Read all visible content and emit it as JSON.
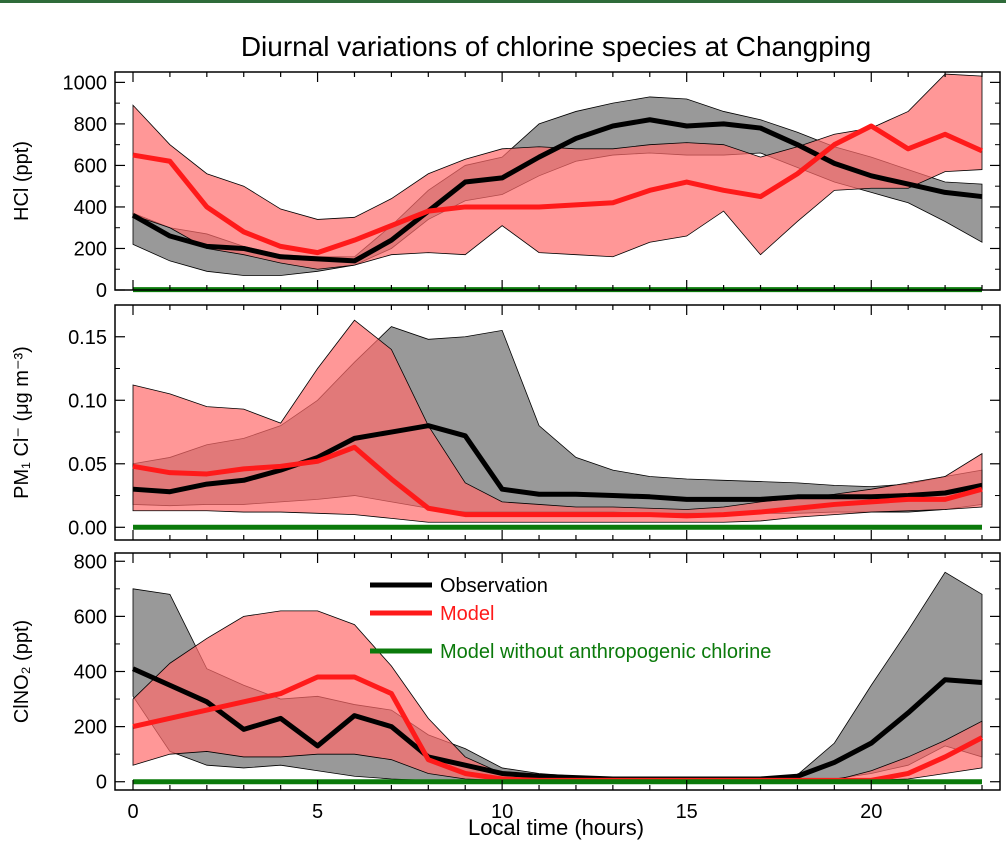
{
  "title": "Diurnal variations of chlorine species at Changping",
  "xlabel": "Local time (hours)",
  "colors": {
    "observation": "#000000",
    "model": "#ff1a1a",
    "model_no_anthro": "#0b7a0b",
    "obs_band": "#777777",
    "model_band": "#ff6b6b"
  },
  "legend": [
    {
      "label": "Observation",
      "color": "#000000"
    },
    {
      "label": "Model",
      "color": "#ff1a1a"
    },
    {
      "label": "Model without anthropogenic chlorine",
      "color": "#0b7a0b"
    }
  ],
  "chart_data": [
    {
      "type": "line",
      "ylabel": "HCl (ppt)",
      "xlim": [
        0,
        23
      ],
      "ylim": [
        0,
        1050
      ],
      "yticks": [
        0,
        200,
        400,
        600,
        800,
        1000
      ],
      "xticks": [
        0,
        5,
        10,
        15,
        20
      ],
      "x": [
        0,
        1,
        2,
        3,
        4,
        5,
        6,
        7,
        8,
        9,
        10,
        11,
        12,
        13,
        14,
        15,
        16,
        17,
        18,
        19,
        20,
        21,
        22,
        23
      ],
      "series": [
        {
          "name": "Observation",
          "key": "obs",
          "values": [
            360,
            260,
            210,
            200,
            160,
            150,
            140,
            240,
            380,
            520,
            540,
            640,
            730,
            790,
            820,
            790,
            800,
            780,
            700,
            610,
            550,
            510,
            470,
            450
          ],
          "upper": [
            370,
            300,
            270,
            210,
            170,
            160,
            160,
            310,
            480,
            600,
            640,
            800,
            860,
            900,
            930,
            920,
            860,
            820,
            760,
            690,
            640,
            580,
            520,
            510
          ],
          "lower": [
            220,
            140,
            90,
            70,
            70,
            90,
            120,
            200,
            340,
            430,
            460,
            550,
            620,
            650,
            660,
            650,
            650,
            660,
            590,
            520,
            470,
            420,
            330,
            230
          ]
        },
        {
          "name": "Model",
          "key": "model",
          "values": [
            650,
            620,
            400,
            280,
            210,
            180,
            240,
            310,
            380,
            400,
            400,
            400,
            410,
            420,
            480,
            520,
            480,
            450,
            560,
            700,
            790,
            680,
            750,
            670
          ],
          "upper": [
            890,
            700,
            560,
            500,
            390,
            340,
            350,
            440,
            560,
            630,
            680,
            690,
            680,
            680,
            700,
            710,
            700,
            640,
            690,
            750,
            780,
            860,
            1040,
            1030
          ],
          "lower": [
            360,
            300,
            200,
            170,
            130,
            100,
            120,
            170,
            180,
            170,
            310,
            180,
            170,
            160,
            230,
            260,
            380,
            170,
            330,
            480,
            490,
            490,
            570,
            580
          ]
        },
        {
          "name": "Model without anthropogenic chlorine",
          "key": "no_anthro",
          "values": [
            2,
            2,
            2,
            2,
            2,
            2,
            2,
            2,
            2,
            2,
            2,
            2,
            2,
            2,
            2,
            2,
            2,
            2,
            2,
            2,
            2,
            2,
            2,
            2
          ]
        }
      ]
    },
    {
      "type": "line",
      "ylabel": "PM₁ Cl⁻ (μg m⁻³)",
      "xlim": [
        0,
        23
      ],
      "ylim": [
        -0.01,
        0.175
      ],
      "yticks": [
        0.0,
        0.05,
        0.1,
        0.15
      ],
      "ytick_labels": [
        "0.00",
        "0.05",
        "0.10",
        "0.15"
      ],
      "xticks": [
        0,
        5,
        10,
        15,
        20
      ],
      "x": [
        0,
        1,
        2,
        3,
        4,
        5,
        6,
        7,
        8,
        9,
        10,
        11,
        12,
        13,
        14,
        15,
        16,
        17,
        18,
        19,
        20,
        21,
        22,
        23
      ],
      "series": [
        {
          "name": "Observation",
          "key": "obs",
          "values": [
            0.03,
            0.028,
            0.034,
            0.037,
            0.045,
            0.055,
            0.07,
            0.075,
            0.08,
            0.072,
            0.03,
            0.026,
            0.026,
            0.025,
            0.024,
            0.022,
            0.022,
            0.022,
            0.024,
            0.024,
            0.024,
            0.025,
            0.027,
            0.033
          ],
          "upper": [
            0.05,
            0.055,
            0.065,
            0.07,
            0.08,
            0.1,
            0.13,
            0.158,
            0.148,
            0.15,
            0.155,
            0.08,
            0.055,
            0.045,
            0.04,
            0.038,
            0.037,
            0.036,
            0.035,
            0.033,
            0.032,
            0.034,
            0.04,
            0.045
          ],
          "lower": [
            0.018,
            0.017,
            0.018,
            0.018,
            0.02,
            0.022,
            0.025,
            0.02,
            0.015,
            0.012,
            0.012,
            0.012,
            0.012,
            0.012,
            0.011,
            0.011,
            0.011,
            0.011,
            0.011,
            0.012,
            0.012,
            0.012,
            0.014,
            0.018
          ]
        },
        {
          "name": "Model",
          "key": "model",
          "values": [
            0.048,
            0.043,
            0.042,
            0.046,
            0.048,
            0.052,
            0.063,
            0.038,
            0.015,
            0.01,
            0.01,
            0.01,
            0.01,
            0.01,
            0.01,
            0.009,
            0.01,
            0.012,
            0.015,
            0.018,
            0.02,
            0.022,
            0.022,
            0.03
          ],
          "upper": [
            0.112,
            0.105,
            0.095,
            0.093,
            0.082,
            0.125,
            0.163,
            0.14,
            0.08,
            0.035,
            0.02,
            0.018,
            0.016,
            0.016,
            0.015,
            0.014,
            0.016,
            0.02,
            0.023,
            0.026,
            0.03,
            0.035,
            0.04,
            0.058
          ],
          "lower": [
            0.013,
            0.013,
            0.013,
            0.012,
            0.012,
            0.011,
            0.01,
            0.007,
            0.004,
            0.004,
            0.004,
            0.004,
            0.004,
            0.004,
            0.004,
            0.004,
            0.004,
            0.005,
            0.008,
            0.01,
            0.012,
            0.013,
            0.014,
            0.016
          ]
        },
        {
          "name": "Model without anthropogenic chlorine",
          "key": "no_anthro",
          "values": [
            0,
            0,
            0,
            0,
            0,
            0,
            0,
            0,
            0,
            0,
            0,
            0,
            0,
            0,
            0,
            0,
            0,
            0,
            0,
            0,
            0,
            0,
            0,
            0
          ]
        }
      ]
    },
    {
      "type": "line",
      "ylabel": "ClNO₂ (ppt)",
      "xlim": [
        0,
        23
      ],
      "ylim": [
        -30,
        830
      ],
      "yticks": [
        0,
        200,
        400,
        600,
        800
      ],
      "xticks": [
        0,
        5,
        10,
        15,
        20
      ],
      "x": [
        0,
        1,
        2,
        3,
        4,
        5,
        6,
        7,
        8,
        9,
        10,
        11,
        12,
        13,
        14,
        15,
        16,
        17,
        18,
        19,
        20,
        21,
        22,
        23
      ],
      "series": [
        {
          "name": "Observation",
          "key": "obs",
          "values": [
            410,
            350,
            290,
            190,
            230,
            130,
            240,
            200,
            90,
            60,
            30,
            20,
            15,
            10,
            10,
            10,
            10,
            10,
            20,
            70,
            140,
            250,
            370,
            360
          ],
          "upper": [
            700,
            680,
            410,
            350,
            300,
            310,
            280,
            260,
            170,
            120,
            50,
            30,
            20,
            15,
            15,
            15,
            15,
            15,
            25,
            140,
            350,
            550,
            760,
            680
          ],
          "lower": [
            310,
            110,
            60,
            50,
            60,
            40,
            20,
            10,
            5,
            5,
            5,
            5,
            5,
            5,
            5,
            5,
            5,
            5,
            5,
            10,
            30,
            60,
            130,
            90
          ]
        },
        {
          "name": "Model",
          "key": "model",
          "values": [
            200,
            230,
            260,
            290,
            320,
            380,
            380,
            320,
            80,
            30,
            10,
            5,
            5,
            5,
            5,
            5,
            5,
            5,
            5,
            5,
            5,
            30,
            90,
            160
          ],
          "upper": [
            300,
            430,
            520,
            600,
            620,
            620,
            570,
            420,
            230,
            90,
            30,
            10,
            5,
            5,
            5,
            5,
            5,
            5,
            5,
            5,
            40,
            90,
            150,
            220
          ],
          "lower": [
            60,
            100,
            110,
            90,
            90,
            100,
            100,
            80,
            30,
            10,
            5,
            5,
            5,
            5,
            5,
            5,
            5,
            5,
            5,
            5,
            5,
            10,
            30,
            50
          ]
        },
        {
          "name": "Model without anthropogenic chlorine",
          "key": "no_anthro",
          "values": [
            0,
            0,
            0,
            0,
            0,
            0,
            0,
            0,
            0,
            0,
            0,
            0,
            0,
            0,
            0,
            0,
            0,
            0,
            0,
            0,
            0,
            0,
            0,
            0
          ]
        }
      ]
    }
  ]
}
